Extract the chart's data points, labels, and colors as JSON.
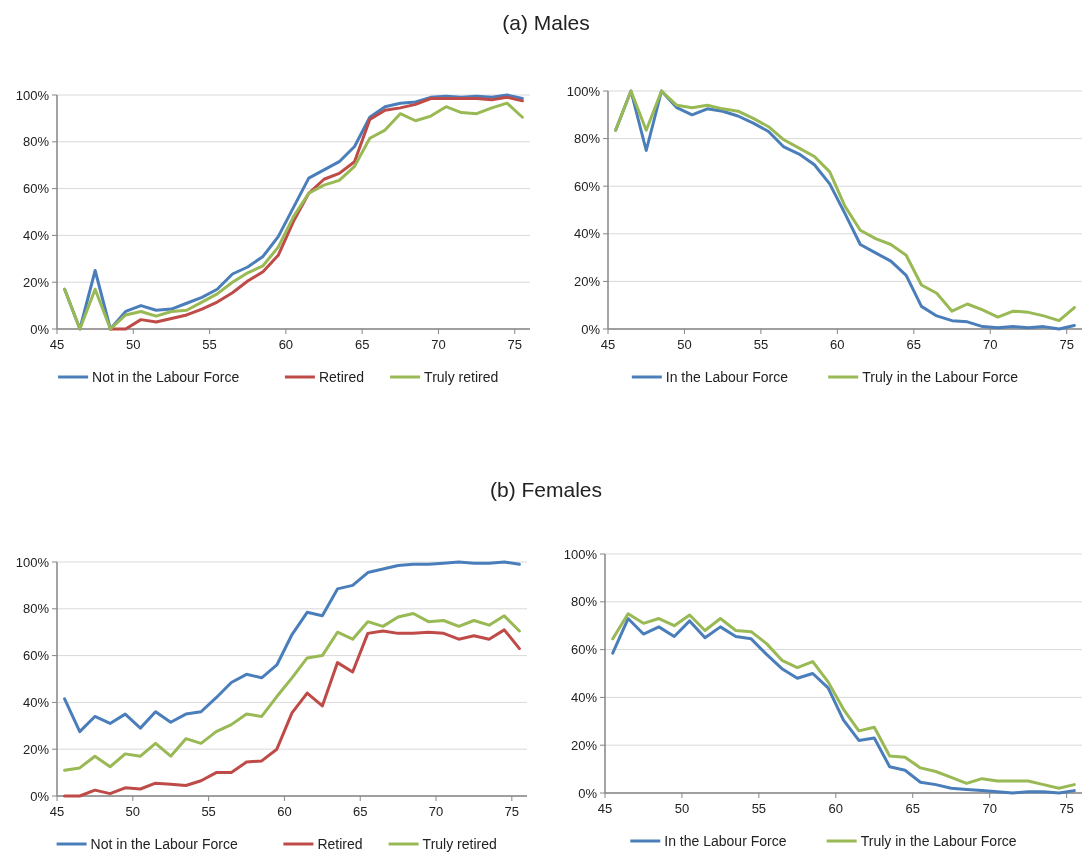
{
  "chart_data": [
    {
      "type": "line",
      "title": "(a) Males",
      "x": [
        45.5,
        46.5,
        47.5,
        48.5,
        49.5,
        50.5,
        51.5,
        52.5,
        53.5,
        54.5,
        55.5,
        56.5,
        57.5,
        58.5,
        59.5,
        60.5,
        61.5,
        62.5,
        63.5,
        64.5,
        65.5,
        66.5,
        67.5,
        68.5,
        69.5,
        70.5,
        71.5,
        72.5,
        73.5,
        74.5,
        75.5
      ],
      "xlim": [
        45,
        76
      ],
      "xticks": [
        45,
        50,
        55,
        60,
        65,
        70,
        75
      ],
      "ylim": [
        0,
        100
      ],
      "yticks": [
        {
          "value": 0,
          "label": "0%"
        },
        {
          "value": 20,
          "label": "20%"
        },
        {
          "value": 40,
          "label": "40%"
        },
        {
          "value": 60,
          "label": "60%"
        },
        {
          "value": 80,
          "label": "80%"
        },
        {
          "value": 100,
          "label": "100%"
        }
      ],
      "grid": "y",
      "legend": "bottom",
      "marker": "none",
      "line_style": "solid",
      "series": [
        {
          "name": "Not in the Labour Force",
          "color": "#4a7ebb",
          "values": [
            17,
            0,
            25,
            0,
            7.5,
            10,
            8,
            8.5,
            11,
            13.5,
            17,
            23.5,
            26.5,
            31,
            39.5,
            52,
            64.5,
            68,
            71.5,
            78,
            90.5,
            95,
            96.5,
            97,
            99,
            99.5,
            99,
            99.5,
            99,
            100,
            98.5
          ]
        },
        {
          "name": "Retired",
          "color": "#be4b48",
          "values": [
            null,
            null,
            null,
            0,
            0,
            4,
            3,
            4.5,
            6,
            8.5,
            11.5,
            15.5,
            20.5,
            24.5,
            31.5,
            46,
            58,
            64,
            66.5,
            71.5,
            89.5,
            93.5,
            94.5,
            96,
            98.5,
            98.5,
            98.5,
            98.5,
            98,
            99,
            97.5
          ]
        },
        {
          "name": "Truly retired",
          "color": "#98b954",
          "values": [
            17,
            0,
            17,
            0,
            6,
            7.5,
            5.5,
            7.5,
            8,
            11.5,
            15,
            20,
            24,
            27,
            35,
            48,
            58,
            61.5,
            63.5,
            69.5,
            81.5,
            85,
            92,
            89,
            91,
            95,
            92.5,
            92,
            94.5,
            96.5,
            90.5
          ]
        }
      ]
    },
    {
      "type": "line",
      "x": [
        45.5,
        46.5,
        47.5,
        48.5,
        49.5,
        50.5,
        51.5,
        52.5,
        53.5,
        54.5,
        55.5,
        56.5,
        57.5,
        58.5,
        59.5,
        60.5,
        61.5,
        62.5,
        63.5,
        64.5,
        65.5,
        66.5,
        67.5,
        68.5,
        69.5,
        70.5,
        71.5,
        72.5,
        73.5,
        74.5,
        75.5
      ],
      "xlim": [
        45,
        76
      ],
      "xticks": [
        45,
        50,
        55,
        60,
        65,
        70,
        75
      ],
      "ylim": [
        0,
        100
      ],
      "yticks": [
        {
          "value": 0,
          "label": "0%"
        },
        {
          "value": 20,
          "label": "20%"
        },
        {
          "value": 40,
          "label": "40%"
        },
        {
          "value": 60,
          "label": "60%"
        },
        {
          "value": 80,
          "label": "80%"
        },
        {
          "value": 100,
          "label": "100%"
        }
      ],
      "grid": "y",
      "legend": "bottom",
      "marker": "none",
      "line_style": "solid",
      "series": [
        {
          "name": "In the Labour Force",
          "color": "#4a7ebb",
          "values": [
            83.5,
            100,
            75,
            100,
            93,
            90,
            92.5,
            91.5,
            89.5,
            86.5,
            83,
            76.5,
            73.5,
            69,
            61,
            48.5,
            35.5,
            32,
            28.5,
            22.5,
            9.5,
            5.5,
            3.5,
            3,
            1,
            0.5,
            1,
            0.5,
            1,
            0,
            1.5
          ]
        },
        {
          "name": "Truly in the Labour Force",
          "color": "#98b954",
          "values": [
            83.5,
            100,
            83.5,
            100,
            94,
            93,
            94,
            92.5,
            91.5,
            88.5,
            85,
            79.5,
            76,
            72.5,
            66,
            51.5,
            41.5,
            38,
            35.5,
            31,
            18.5,
            15,
            7.5,
            10.5,
            8,
            5,
            7.5,
            7,
            5.5,
            3.5,
            9
          ]
        }
      ]
    },
    {
      "type": "line",
      "title": "(b) Females",
      "x": [
        45.5,
        46.5,
        47.5,
        48.5,
        49.5,
        50.5,
        51.5,
        52.5,
        53.5,
        54.5,
        55.5,
        56.5,
        57.5,
        58.5,
        59.5,
        60.5,
        61.5,
        62.5,
        63.5,
        64.5,
        65.5,
        66.5,
        67.5,
        68.5,
        69.5,
        70.5,
        71.5,
        72.5,
        73.5,
        74.5,
        75.5
      ],
      "xlim": [
        45,
        76
      ],
      "xticks": [
        45,
        50,
        55,
        60,
        65,
        70,
        75
      ],
      "ylim": [
        0,
        100
      ],
      "yticks": [
        {
          "value": 0,
          "label": "0%"
        },
        {
          "value": 20,
          "label": "20%"
        },
        {
          "value": 40,
          "label": "40%"
        },
        {
          "value": 60,
          "label": "60%"
        },
        {
          "value": 80,
          "label": "80%"
        },
        {
          "value": 100,
          "label": "100%"
        }
      ],
      "grid": "y",
      "legend": "bottom",
      "marker": "none",
      "line_style": "solid",
      "series": [
        {
          "name": "Not in the Labour Force",
          "color": "#4a7ebb",
          "values": [
            41.5,
            27.5,
            34,
            31,
            35,
            29,
            36,
            31.5,
            35,
            36,
            42,
            48.5,
            52,
            50.5,
            56,
            69,
            78.5,
            77,
            88.5,
            90,
            95.5,
            97,
            98.5,
            99,
            99,
            99.5,
            100,
            99.5,
            99.5,
            100,
            99
          ]
        },
        {
          "name": "Retired",
          "color": "#be4b48",
          "values": [
            0,
            0,
            2.5,
            1,
            3.5,
            3,
            5.5,
            5,
            4.5,
            6.5,
            10,
            10,
            14.5,
            15,
            20,
            35.5,
            44,
            38.5,
            57,
            53,
            69.5,
            70.5,
            69.5,
            69.5,
            70,
            69.5,
            67,
            68.5,
            67,
            71,
            63
          ]
        },
        {
          "name": "Truly retired",
          "color": "#98b954",
          "values": [
            11,
            12,
            17,
            12.5,
            18,
            17,
            22.5,
            17,
            24.5,
            22.5,
            27.5,
            30.5,
            35,
            34,
            42.5,
            50.5,
            59,
            60,
            70,
            67,
            74.5,
            72.5,
            76.5,
            78,
            74.5,
            75,
            72.5,
            75,
            73,
            77,
            70.5
          ]
        }
      ]
    },
    {
      "type": "line",
      "x": [
        45.5,
        46.5,
        47.5,
        48.5,
        49.5,
        50.5,
        51.5,
        52.5,
        53.5,
        54.5,
        55.5,
        56.5,
        57.5,
        58.5,
        59.5,
        60.5,
        61.5,
        62.5,
        63.5,
        64.5,
        65.5,
        66.5,
        67.5,
        68.5,
        69.5,
        70.5,
        71.5,
        72.5,
        73.5,
        74.5,
        75.5
      ],
      "xlim": [
        45,
        76
      ],
      "xticks": [
        45,
        50,
        55,
        60,
        65,
        70,
        75
      ],
      "ylim": [
        0,
        100
      ],
      "yticks": [
        {
          "value": 0,
          "label": "0%"
        },
        {
          "value": 20,
          "label": "20%"
        },
        {
          "value": 40,
          "label": "40%"
        },
        {
          "value": 60,
          "label": "60%"
        },
        {
          "value": 80,
          "label": "80%"
        },
        {
          "value": 100,
          "label": "100%"
        }
      ],
      "grid": "y",
      "legend": "bottom",
      "marker": "none",
      "line_style": "solid",
      "series": [
        {
          "name": "In the Labour Force",
          "color": "#4a7ebb",
          "values": [
            58.5,
            73,
            66.5,
            69.5,
            65.5,
            72,
            65,
            69.5,
            65.5,
            64.5,
            58,
            52,
            48,
            50,
            44,
            30.5,
            22,
            23,
            11,
            9.5,
            4.5,
            3.5,
            2,
            1.5,
            1,
            0.5,
            0,
            0.5,
            0.5,
            0,
            1
          ]
        },
        {
          "name": "Truly in the Labour Force",
          "color": "#98b954",
          "values": [
            64.5,
            75,
            71,
            73,
            70,
            74.5,
            68,
            73,
            68,
            67.5,
            62.5,
            55.5,
            52.5,
            55,
            46.5,
            35,
            26,
            27.5,
            15.5,
            15,
            10.5,
            9,
            6.5,
            4,
            6,
            5,
            5,
            5,
            3.5,
            2,
            3.5
          ]
        }
      ]
    }
  ]
}
